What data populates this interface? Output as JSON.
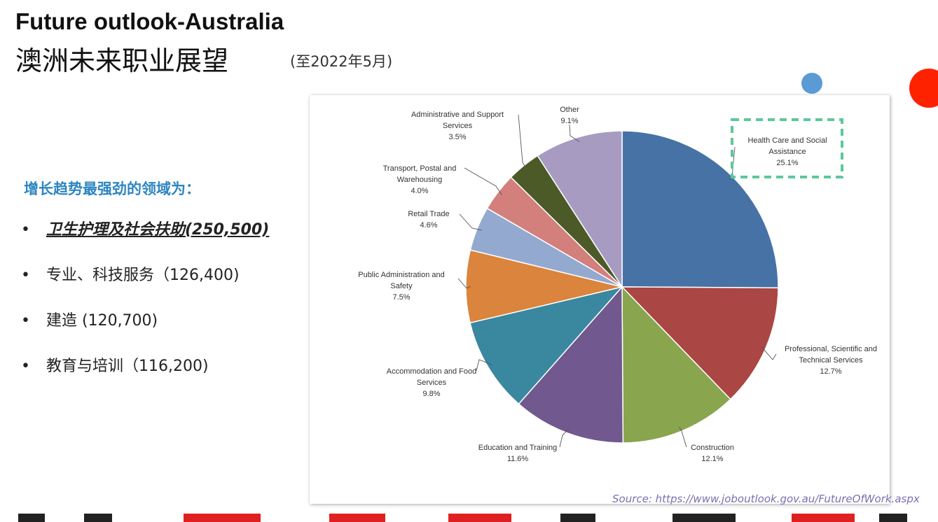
{
  "slide": {
    "title_en": "Future outlook-Australia",
    "title_zh": "澳洲未来职业展望",
    "date_note": "(至2022年5月)",
    "trend_heading": "增长趋势最强劲的领域为：",
    "bullets": [
      {
        "mark": "•",
        "text": "卫生护理及社会扶助(250,500)",
        "highlight": true
      },
      {
        "mark": "•",
        "text": "专业、科技服务（126,400)",
        "highlight": false
      },
      {
        "mark": "•",
        "text": "建造 (120,700)",
        "highlight": false
      },
      {
        "mark": "•",
        "text": "教育与培训（116,200)",
        "highlight": false
      }
    ],
    "source": "Source: https://www.joboutlook.gov.au/FutureOfWork.aspx",
    "colors": {
      "heading": "#2e86c1",
      "dot_blue": "#5b9bd5",
      "dot_red": "#ff2200",
      "highlight_box": "#5cc89a"
    }
  },
  "chart_data": {
    "type": "pie",
    "title": "",
    "start_angle_deg": 0,
    "direction": "clockwise",
    "slices": [
      {
        "label_lines": [
          "Health Care and Social",
          "Assistance"
        ],
        "percent_label": "25.1%",
        "value": 25.1,
        "color": "#4672a6"
      },
      {
        "label_lines": [
          "Professional, Scientific and",
          "Technical Services"
        ],
        "percent_label": "12.7%",
        "value": 12.7,
        "color": "#aa4643"
      },
      {
        "label_lines": [
          "Construction"
        ],
        "percent_label": "12.1%",
        "value": 12.1,
        "color": "#89a54e"
      },
      {
        "label_lines": [
          "Education and Training"
        ],
        "percent_label": "11.6%",
        "value": 11.6,
        "color": "#71588f"
      },
      {
        "label_lines": [
          "Accommodation and Food",
          "Services"
        ],
        "percent_label": "9.8%",
        "value": 9.8,
        "color": "#3a87a0"
      },
      {
        "label_lines": [
          "Public Administration and",
          "Safety"
        ],
        "percent_label": "7.5%",
        "value": 7.5,
        "color": "#db843d"
      },
      {
        "label_lines": [
          "Retail Trade"
        ],
        "percent_label": "4.6%",
        "value": 4.6,
        "color": "#93a9cf"
      },
      {
        "label_lines": [
          "Transport, Postal and",
          "Warehousing"
        ],
        "percent_label": "4.0%",
        "value": 4.0,
        "color": "#d37f7c"
      },
      {
        "label_lines": [
          "Administrative and Support",
          "Services"
        ],
        "percent_label": "3.5%",
        "value": 3.5,
        "color": "#4c5a28"
      },
      {
        "label_lines": [
          "Other"
        ],
        "percent_label": "9.1%",
        "value": 9.1,
        "color": "#a89bc2"
      }
    ],
    "highlighted_slice": 0,
    "legend": "none"
  }
}
